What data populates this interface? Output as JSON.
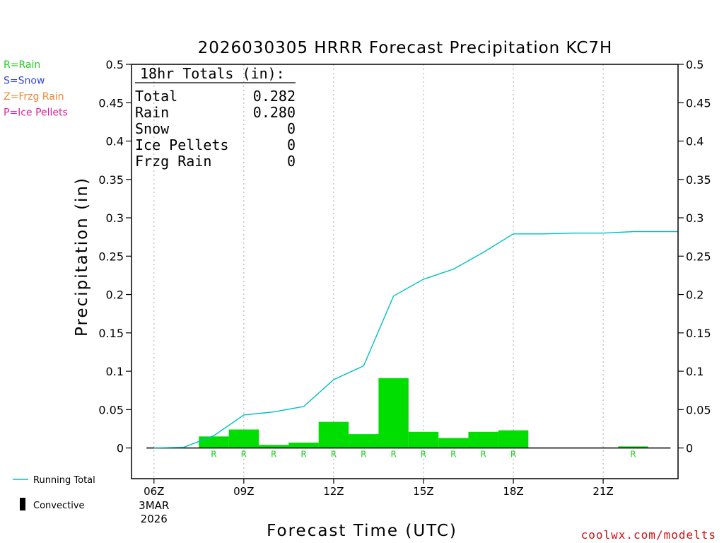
{
  "chart_data": {
    "type": "bar",
    "title": "2026030305 HRRR Forecast Precipitation KC7H",
    "xlabel": "Forecast Time (UTC)",
    "ylabel": "Precipitation (in)",
    "ylim": [
      -0.04,
      0.5
    ],
    "y_ticks": [
      0,
      0.05,
      0.1,
      0.15,
      0.2,
      0.25,
      0.3,
      0.35,
      0.4,
      0.45,
      0.5
    ],
    "y_tick_labels": [
      "0",
      "0.05",
      "0.1",
      "0.15",
      "0.2",
      "0.25",
      "0.3",
      "0.35",
      "0.4",
      "0.45",
      "0.5"
    ],
    "xlim_hours": [
      5.25,
      23.5
    ],
    "x_ticks": [
      {
        "hour": 6,
        "label": "06Z",
        "date_line1": "3MAR",
        "date_line2": "2026"
      },
      {
        "hour": 9,
        "label": "09Z"
      },
      {
        "hour": 12,
        "label": "12Z"
      },
      {
        "hour": 15,
        "label": "15Z"
      },
      {
        "hour": 18,
        "label": "18Z"
      },
      {
        "hour": 21,
        "label": "21Z"
      }
    ],
    "grid": "vertical dotted at x ticks",
    "hourly_precip": [
      {
        "hour": 6,
        "value": 0,
        "ptype": ""
      },
      {
        "hour": 7,
        "value": 0,
        "ptype": ""
      },
      {
        "hour": 8,
        "value": 0.015,
        "ptype": "R"
      },
      {
        "hour": 9,
        "value": 0.024,
        "ptype": "R"
      },
      {
        "hour": 10,
        "value": 0.004,
        "ptype": "R"
      },
      {
        "hour": 11,
        "value": 0.007,
        "ptype": "R"
      },
      {
        "hour": 12,
        "value": 0.034,
        "ptype": "R"
      },
      {
        "hour": 13,
        "value": 0.018,
        "ptype": "R"
      },
      {
        "hour": 14,
        "value": 0.091,
        "ptype": "R"
      },
      {
        "hour": 15,
        "value": 0.021,
        "ptype": "R"
      },
      {
        "hour": 16,
        "value": 0.013,
        "ptype": "R"
      },
      {
        "hour": 17,
        "value": 0.021,
        "ptype": "R"
      },
      {
        "hour": 18,
        "value": 0.023,
        "ptype": "R"
      },
      {
        "hour": 19,
        "value": 0,
        "ptype": ""
      },
      {
        "hour": 20,
        "value": 0,
        "ptype": ""
      },
      {
        "hour": 21,
        "value": 0,
        "ptype": ""
      },
      {
        "hour": 22,
        "value": 0.002,
        "ptype": "R"
      },
      {
        "hour": 23,
        "value": 0,
        "ptype": ""
      }
    ],
    "running_total": [
      {
        "hour": 6,
        "value": 0
      },
      {
        "hour": 7,
        "value": 0.001
      },
      {
        "hour": 8,
        "value": 0.016
      },
      {
        "hour": 9,
        "value": 0.043
      },
      {
        "hour": 10,
        "value": 0.047
      },
      {
        "hour": 11,
        "value": 0.054
      },
      {
        "hour": 12,
        "value": 0.089
      },
      {
        "hour": 13,
        "value": 0.107
      },
      {
        "hour": 14,
        "value": 0.198
      },
      {
        "hour": 15,
        "value": 0.22
      },
      {
        "hour": 16,
        "value": 0.233
      },
      {
        "hour": 17,
        "value": 0.255
      },
      {
        "hour": 18,
        "value": 0.279
      },
      {
        "hour": 19,
        "value": 0.279
      },
      {
        "hour": 20,
        "value": 0.28
      },
      {
        "hour": 21,
        "value": 0.28
      },
      {
        "hour": 22,
        "value": 0.282
      },
      {
        "hour": 23.5,
        "value": 0.282
      }
    ],
    "totals": {
      "heading": "18hr Totals (in):",
      "rows": [
        {
          "label": "Total",
          "value": "0.282"
        },
        {
          "label": "Rain",
          "value": "0.280"
        },
        {
          "label": "Snow",
          "value": "0"
        },
        {
          "label": "Ice Pellets",
          "value": "0"
        },
        {
          "label": "Frzg Rain",
          "value": "0"
        }
      ]
    },
    "ptype_legend": [
      {
        "text": "R=Rain",
        "color": "#22cc22"
      },
      {
        "text": "S=Snow",
        "color": "#3344dd"
      },
      {
        "text": "Z=Frzg Rain",
        "color": "#ee8833"
      },
      {
        "text": "P=Ice Pellets",
        "color": "#dd2299"
      }
    ],
    "series_legend": [
      {
        "text": "Running Total",
        "color": "#00c0c0"
      },
      {
        "text": "Convective",
        "color": "#000000"
      }
    ],
    "credit": "coolwx.com/modelts",
    "colors": {
      "bar": "#00dd00",
      "running_total": "#00c0c0",
      "ptype_label": "#22cc22"
    }
  }
}
